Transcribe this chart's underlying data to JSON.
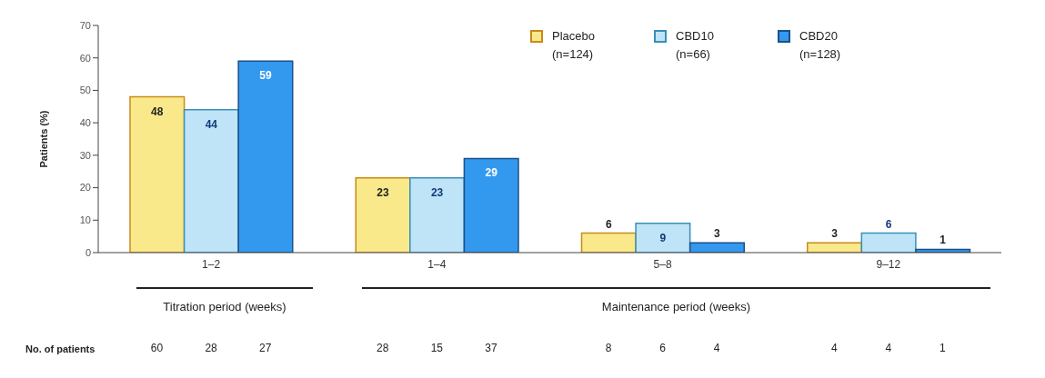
{
  "chart_data": {
    "type": "bar",
    "ylabel": "Patients (%)",
    "categories": [
      "1–2",
      "1–4",
      "5–8",
      "9–12"
    ],
    "series": [
      {
        "name": "Placebo (n=124)",
        "color": "#f9e98a",
        "values": [
          48,
          23,
          6,
          3
        ]
      },
      {
        "name": "CBD10 (n=66)",
        "color": "#bfe4f7",
        "values": [
          44,
          23,
          9,
          6
        ]
      },
      {
        "name": "CBD20 (n=128)",
        "color": "#3399ee",
        "values": [
          59,
          29,
          3,
          1
        ]
      }
    ],
    "ylim": [
      0,
      70
    ],
    "yticks": [
      0,
      10,
      20,
      30,
      40,
      50,
      60,
      70
    ],
    "grid": false,
    "legend": "top right",
    "data_labels": true,
    "annotations": [
      "Titration period (weeks)",
      "Maintenance period (weeks)",
      "No. of patients",
      "60",
      "28",
      "27",
      "28",
      "15",
      "37",
      "8",
      "6",
      "4",
      "4",
      "4",
      "1"
    ]
  }
}
